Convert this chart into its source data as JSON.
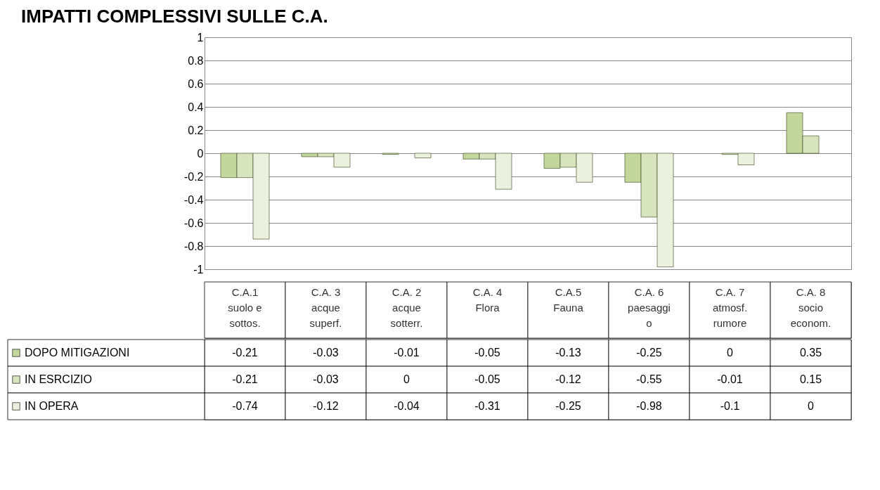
{
  "chart_data": {
    "type": "bar",
    "title": "IMPATTI COMPLESSIVI SULLE C.A.",
    "categories": [
      "C.A.1\nsuolo e\nsottos.",
      "C.A. 3\nacque\nsuperf.",
      "C.A. 2\nacque\nsotterr.",
      "C.A. 4\nFlora",
      "C.A.5\nFauna",
      "C.A. 6\npaesaggi\no",
      "C.A. 7\natmosf.\nrumore",
      "C.A. 8\nsocio\neconom."
    ],
    "series": [
      {
        "name": "DOPO MITIGAZIONI",
        "color": "#c3d69b",
        "values": [
          -0.21,
          -0.03,
          -0.01,
          -0.05,
          -0.13,
          -0.25,
          0,
          0.35
        ]
      },
      {
        "name": "IN ESRCIZIO",
        "color": "#d7e4bd",
        "values": [
          -0.21,
          -0.03,
          0,
          -0.05,
          -0.12,
          -0.55,
          -0.01,
          0.15
        ]
      },
      {
        "name": "IN OPERA",
        "color": "#ebf1de",
        "values": [
          -0.74,
          -0.12,
          -0.04,
          -0.31,
          -0.25,
          -0.98,
          -0.1,
          0
        ]
      }
    ],
    "ylim": [
      -1,
      1
    ],
    "yticks": [
      -1,
      -0.8,
      -0.6,
      -0.4,
      -0.2,
      0,
      0.2,
      0.4,
      0.6,
      0.8,
      1
    ],
    "grid": "y",
    "data_labels": true,
    "legend": "bottom left"
  }
}
